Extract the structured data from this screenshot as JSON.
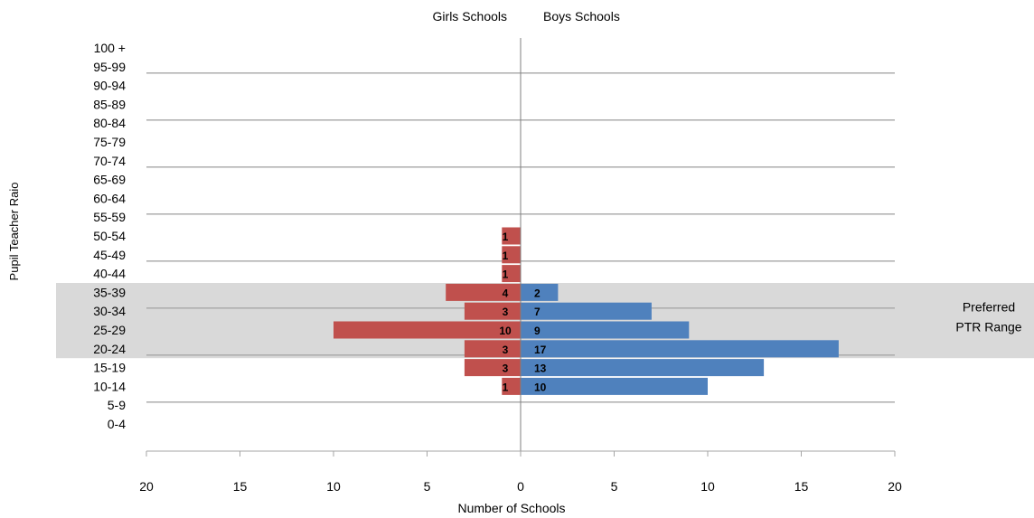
{
  "chart_data": {
    "type": "bar",
    "orientation": "horizontal-diverging",
    "header_left": "Girls Schools",
    "header_right": "Boys Schools",
    "ylabel": "Pupil Teacher Raio",
    "xlabel": "Number of Schools",
    "categories": [
      "100 +",
      "95-99",
      "90-94",
      "85-89",
      "80-84",
      "75-79",
      "70-74",
      "65-69",
      "60-64",
      "55-59",
      "50-54",
      "45-49",
      "40-44",
      "35-39",
      "30-34",
      "25-29",
      "20-24",
      "15-19",
      "10-14",
      "5-9",
      "0-4"
    ],
    "series": [
      {
        "name": "Girls Schools",
        "side": "left",
        "color": "#c0504d",
        "values": [
          0,
          0,
          0,
          0,
          0,
          0,
          0,
          0,
          0,
          0,
          1,
          1,
          1,
          4,
          3,
          10,
          3,
          3,
          1,
          0,
          0
        ]
      },
      {
        "name": "Boys Schools",
        "side": "right",
        "color": "#4f81bd",
        "values": [
          0,
          0,
          0,
          0,
          0,
          0,
          0,
          0,
          0,
          0,
          0,
          0,
          0,
          2,
          7,
          9,
          17,
          13,
          10,
          0,
          0
        ]
      }
    ],
    "xticks": [
      {
        "value": -20,
        "label": "20"
      },
      {
        "value": -15,
        "label": "15"
      },
      {
        "value": -10,
        "label": "10"
      },
      {
        "value": -5,
        "label": "5"
      },
      {
        "value": 0,
        "label": "0"
      },
      {
        "value": 5,
        "label": "5"
      },
      {
        "value": 10,
        "label": "10"
      },
      {
        "value": 15,
        "label": "15"
      },
      {
        "value": 20,
        "label": "20"
      }
    ],
    "xlim": [
      -20,
      20
    ],
    "highlight": {
      "from": "35-39",
      "to": "20-24",
      "label_lines": [
        "Preferred",
        "PTR Range"
      ],
      "color": "#d9d9d9"
    },
    "grid": true,
    "gridline_color": "#a6a6a6"
  }
}
